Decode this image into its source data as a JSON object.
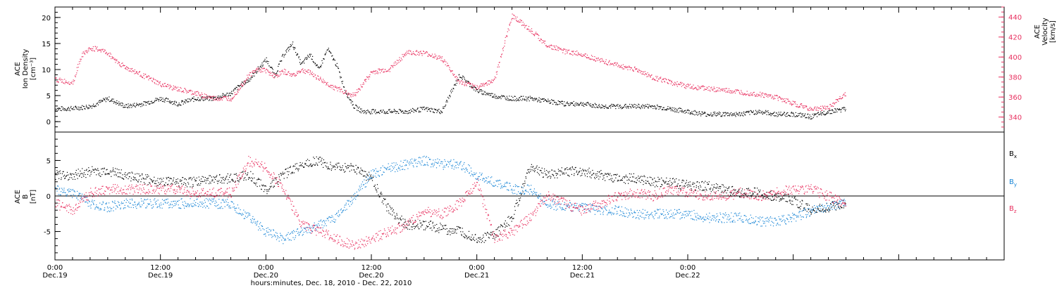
{
  "colors": {
    "black": "#000000",
    "pink": "#e8305f",
    "blue": "#1a86d6"
  },
  "chart_data": [
    {
      "type": "scatter",
      "panel": "top",
      "left_axis": {
        "label_lines": [
          "ACE",
          "Ion Density",
          "[cm⁻³]"
        ],
        "ylim": [
          -2,
          22
        ],
        "ticks": [
          0,
          5,
          10,
          15,
          20
        ]
      },
      "right_axis": {
        "label_lines": [
          "ACE",
          "Velocity",
          "[km/s]"
        ],
        "ylim": [
          325,
          450
        ],
        "ticks": [
          340,
          360,
          380,
          400,
          420,
          440
        ]
      },
      "series": [
        {
          "color": "#000000",
          "axis": "left",
          "x_hours": [
            0,
            2,
            4,
            6,
            8,
            10,
            12,
            14,
            16,
            18,
            20,
            21,
            22,
            23,
            24,
            25,
            26,
            27,
            28,
            29,
            30,
            31,
            32,
            33,
            34,
            35,
            36,
            38,
            40,
            42,
            44,
            46,
            48,
            50,
            52,
            54,
            56,
            58,
            60,
            62,
            64,
            66,
            68,
            70,
            72,
            74,
            76,
            78,
            80,
            82,
            84,
            86,
            88,
            90
          ],
          "values": [
            2.5,
            2.6,
            3.0,
            4.5,
            3.0,
            3.5,
            4.5,
            3.5,
            4.5,
            4.5,
            5.5,
            7,
            8,
            10,
            12,
            9,
            13,
            15,
            11,
            13,
            10,
            14,
            11,
            6,
            3,
            2.0,
            2.0,
            2.0,
            2.0,
            2.5,
            2.0,
            9,
            6,
            5.0,
            4.5,
            4.5,
            4.0,
            3.5,
            3.5,
            3.0,
            3.0,
            3.0,
            3.0,
            2.5,
            2.0,
            1.5,
            1.5,
            1.5,
            2.0,
            1.5,
            1.5,
            1.0,
            2.0,
            2.5
          ]
        },
        {
          "color": "#e8305f",
          "axis": "right",
          "x_hours": [
            0,
            1,
            2,
            3,
            4,
            5,
            6,
            7,
            8,
            10,
            12,
            14,
            16,
            18,
            20,
            21,
            22,
            23,
            24,
            25,
            26,
            27,
            28,
            29,
            30,
            31,
            32,
            33,
            34,
            36,
            38,
            40,
            42,
            44,
            46,
            48,
            50,
            52,
            54,
            56,
            58,
            60,
            62,
            64,
            66,
            68,
            70,
            72,
            74,
            76,
            78,
            80,
            82,
            84,
            86,
            88,
            90
          ],
          "values": [
            378,
            376,
            375,
            402,
            409,
            408,
            404,
            396,
            390,
            382,
            373,
            368,
            364,
            359,
            359,
            370,
            382,
            388,
            387,
            381,
            386,
            382,
            387,
            385,
            379,
            373,
            369,
            365,
            362,
            385,
            388,
            405,
            404,
            399,
            375,
            370,
            378,
            442,
            428,
            412,
            406,
            403,
            397,
            392,
            388,
            380,
            375,
            371,
            369,
            367,
            365,
            363,
            360,
            354,
            348,
            350,
            364
          ]
        }
      ]
    },
    {
      "type": "scatter",
      "panel": "bottom",
      "left_axis": {
        "label_lines": [
          "ACE",
          "B",
          "[nT]"
        ],
        "ylim": [
          -9,
          9
        ],
        "ticks": [
          -5,
          0,
          5
        ]
      },
      "zero_line": true,
      "series": [
        {
          "name": "Bx",
          "color": "#000000",
          "x_hours": [
            0,
            2,
            4,
            6,
            8,
            10,
            12,
            14,
            16,
            18,
            20,
            22,
            24,
            26,
            28,
            30,
            32,
            34,
            36,
            38,
            40,
            42,
            44,
            46,
            48,
            50,
            52,
            54,
            56,
            58,
            60,
            62,
            64,
            66,
            68,
            70,
            72,
            74,
            76,
            78,
            80,
            82,
            84,
            86,
            88,
            90
          ],
          "values": [
            3,
            3,
            3.5,
            3.5,
            3,
            2.5,
            2,
            2,
            2,
            2.5,
            2.5,
            3,
            1,
            3,
            4.5,
            5,
            4,
            4,
            2.5,
            -2,
            -4,
            -4,
            -4.5,
            -5,
            -6,
            -5.5,
            -3,
            4,
            3,
            3.5,
            3.5,
            3,
            2.5,
            2.5,
            2,
            2,
            1.5,
            1.5,
            1,
            0.5,
            0.5,
            0,
            -0.5,
            -2,
            -1.5,
            -1
          ]
        },
        {
          "name": "By",
          "color": "#1a86d6",
          "x_hours": [
            0,
            2,
            4,
            6,
            8,
            10,
            12,
            14,
            16,
            18,
            20,
            22,
            24,
            26,
            28,
            30,
            32,
            34,
            36,
            38,
            40,
            42,
            44,
            46,
            48,
            50,
            52,
            54,
            56,
            58,
            60,
            62,
            64,
            66,
            68,
            70,
            72,
            74,
            76,
            78,
            80,
            82,
            84,
            86,
            88,
            90
          ],
          "values": [
            1,
            0.5,
            -1,
            -1.5,
            -1,
            -1,
            -1,
            -1,
            -1,
            -1,
            -1,
            -3,
            -5,
            -6,
            -5,
            -4,
            -3,
            0,
            3,
            4,
            4.5,
            5,
            4.5,
            4.5,
            3,
            2,
            1,
            1,
            -1,
            -1.5,
            -1.5,
            -2,
            -2,
            -2.5,
            -2.5,
            -2.5,
            -2.5,
            -3,
            -3,
            -3,
            -3.5,
            -3.5,
            -3,
            -2,
            -1.5,
            -1
          ]
        },
        {
          "name": "Bz",
          "color": "#e8305f",
          "x_hours": [
            0,
            2,
            4,
            6,
            8,
            10,
            12,
            14,
            16,
            18,
            20,
            22,
            24,
            26,
            28,
            30,
            32,
            34,
            36,
            38,
            40,
            42,
            44,
            46,
            48,
            50,
            52,
            54,
            56,
            58,
            60,
            62,
            64,
            66,
            68,
            70,
            72,
            74,
            76,
            78,
            80,
            82,
            84,
            86,
            88,
            90
          ],
          "values": [
            -1,
            -2,
            0.5,
            1,
            1,
            1,
            1,
            1,
            0.5,
            0.5,
            0.5,
            5,
            4,
            1,
            -4,
            -5,
            -6,
            -7,
            -6,
            -5,
            -4,
            -2,
            -2.5,
            -1,
            2,
            -6,
            -5,
            -3,
            0,
            -1,
            -2,
            -1,
            0,
            0.5,
            0,
            1,
            0.5,
            0,
            0,
            0.5,
            0,
            0.5,
            1,
            1,
            0,
            -1
          ]
        }
      ],
      "legend": [
        {
          "label": "B",
          "sub": "x",
          "color": "#000000"
        },
        {
          "label": "B",
          "sub": "y",
          "color": "#1a86d6"
        },
        {
          "label": "B",
          "sub": "z",
          "color": "#e8305f"
        }
      ]
    }
  ],
  "x_axis": {
    "range_hours": [
      0,
      108
    ],
    "ticks": [
      {
        "hour": 0,
        "time": "0:00",
        "date": "Dec.19"
      },
      {
        "hour": 12,
        "time": "12:00",
        "date": "Dec.19"
      },
      {
        "hour": 24,
        "time": "0:00",
        "date": "Dec.20"
      },
      {
        "hour": 36,
        "time": "12:00",
        "date": "Dec.20"
      },
      {
        "hour": 48,
        "time": "0:00",
        "date": "Dec.21"
      },
      {
        "hour": 60,
        "time": "12:00",
        "date": "Dec.21"
      },
      {
        "hour": 72,
        "time": "0:00",
        "date": "Dec.22"
      }
    ],
    "label": "hours:minutes, Dec. 18, 2010 - Dec. 22, 2010"
  }
}
